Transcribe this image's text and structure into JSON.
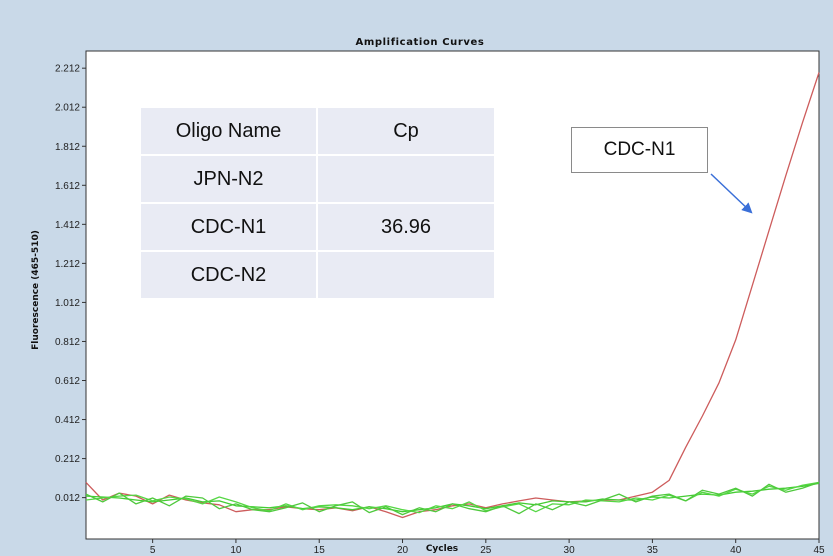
{
  "chart_data": {
    "type": "line",
    "title": "Amplification Curves",
    "xlabel": "Cycles",
    "ylabel": "Fluorescence (465-510)",
    "xlim": [
      1,
      45
    ],
    "ylim": [
      -0.2,
      2.3
    ],
    "xticks": [
      5,
      10,
      15,
      20,
      25,
      30,
      35,
      40,
      45
    ],
    "yticks": [
      0.012,
      0.212,
      0.412,
      0.612,
      0.812,
      1.012,
      1.212,
      1.412,
      1.612,
      1.812,
      2.012,
      2.212
    ],
    "ytick_labels": [
      "0.012",
      "0.212",
      "0.412",
      "0.612",
      "0.812",
      "1.012",
      "1.212",
      "1.412",
      "1.612",
      "1.812",
      "2.012",
      "2.212"
    ],
    "grid": false,
    "series": [
      {
        "color": "#cd5c5c",
        "x": [
          1,
          2,
          3,
          4,
          5,
          6,
          7,
          8,
          9,
          10,
          11,
          12,
          13,
          14,
          15,
          16,
          17,
          18,
          19,
          20,
          21,
          22,
          23,
          24,
          25,
          26,
          27,
          28,
          29,
          30,
          31,
          32,
          33,
          34,
          35,
          36,
          37,
          38,
          39,
          40,
          41,
          42,
          43,
          44,
          45
        ],
        "y": [
          0.09,
          0.0,
          0.035,
          0.02,
          -0.02,
          0.025,
          0.0,
          -0.015,
          -0.025,
          -0.06,
          -0.05,
          -0.05,
          -0.035,
          -0.045,
          -0.05,
          -0.04,
          -0.055,
          -0.035,
          -0.06,
          -0.09,
          -0.06,
          -0.05,
          -0.03,
          -0.02,
          -0.04,
          -0.02,
          -0.005,
          0.01,
          0.0,
          -0.01,
          -0.005,
          0.0,
          0.0,
          0.02,
          0.04,
          0.1,
          0.27,
          0.43,
          0.6,
          0.82,
          1.1,
          1.38,
          1.66,
          1.93,
          2.19
        ]
      },
      {
        "color": "#44cc33",
        "x": [
          1,
          2,
          3,
          4,
          5,
          6,
          7,
          8,
          9,
          10,
          11,
          12,
          13,
          14,
          15,
          16,
          17,
          18,
          19,
          20,
          21,
          22,
          23,
          24,
          25,
          26,
          27,
          28,
          29,
          30,
          31,
          32,
          33,
          34,
          35,
          36,
          37,
          38,
          39,
          40,
          41,
          42,
          43,
          44,
          45
        ],
        "y": [
          0.02,
          0.015,
          0.01,
          0.0,
          -0.01,
          0.0,
          0.01,
          -0.01,
          -0.005,
          -0.03,
          -0.035,
          -0.04,
          -0.03,
          -0.045,
          -0.035,
          -0.04,
          -0.05,
          -0.035,
          -0.045,
          -0.06,
          -0.05,
          -0.04,
          -0.02,
          -0.03,
          -0.045,
          -0.03,
          -0.015,
          -0.025,
          -0.005,
          -0.01,
          -0.01,
          0.005,
          0.0,
          0.0,
          0.015,
          0.01,
          0.02,
          0.03,
          0.025,
          0.04,
          0.045,
          0.055,
          0.06,
          0.07,
          0.085
        ]
      },
      {
        "color": "#55d744",
        "x": [
          1,
          2,
          3,
          4,
          5,
          6,
          7,
          8,
          9,
          10,
          11,
          12,
          13,
          14,
          15,
          16,
          17,
          18,
          19,
          20,
          21,
          22,
          23,
          24,
          25,
          26,
          27,
          28,
          29,
          30,
          31,
          32,
          33,
          34,
          35,
          36,
          37,
          38,
          39,
          40,
          41,
          42,
          43,
          44,
          45
        ],
        "y": [
          0.0,
          0.01,
          0.02,
          0.025,
          -0.005,
          0.015,
          0.005,
          -0.02,
          0.015,
          -0.01,
          -0.04,
          -0.055,
          -0.02,
          -0.05,
          -0.03,
          -0.025,
          -0.03,
          -0.045,
          -0.03,
          -0.05,
          -0.065,
          -0.03,
          -0.045,
          -0.01,
          -0.055,
          -0.035,
          -0.02,
          -0.06,
          -0.02,
          -0.025,
          0.0,
          -0.005,
          -0.01,
          0.01,
          0.0,
          0.025,
          -0.005,
          0.04,
          0.02,
          0.055,
          0.03,
          0.07,
          0.05,
          0.075,
          0.09
        ]
      },
      {
        "color": "#4fc93d",
        "x": [
          1,
          2,
          3,
          4,
          5,
          6,
          7,
          8,
          9,
          10,
          11,
          12,
          13,
          14,
          15,
          16,
          17,
          18,
          19,
          20,
          21,
          22,
          23,
          24,
          25,
          26,
          27,
          28,
          29,
          30,
          31,
          32,
          33,
          34,
          35,
          36,
          37,
          38,
          39,
          40,
          41,
          42,
          43,
          44,
          45
        ],
        "y": [
          0.03,
          -0.01,
          0.035,
          -0.02,
          0.01,
          -0.03,
          0.02,
          0.01,
          -0.045,
          -0.02,
          -0.05,
          -0.06,
          -0.04,
          -0.015,
          -0.06,
          -0.03,
          -0.01,
          -0.065,
          -0.035,
          -0.075,
          -0.04,
          -0.06,
          -0.02,
          -0.045,
          -0.06,
          -0.03,
          -0.07,
          -0.02,
          -0.05,
          -0.01,
          -0.03,
          0.0,
          0.03,
          -0.01,
          0.02,
          0.03,
          -0.005,
          0.05,
          0.03,
          0.06,
          0.02,
          0.08,
          0.04,
          0.06,
          0.09
        ]
      }
    ]
  },
  "table": {
    "header": [
      "Oligo Name",
      "Cp"
    ],
    "rows": [
      [
        "JPN-N2",
        ""
      ],
      [
        "CDC-N1",
        "36.96"
      ],
      [
        "CDC-N2",
        ""
      ]
    ]
  },
  "callout": {
    "label": "CDC-N1",
    "arrow_color": "#3a6fd8"
  }
}
